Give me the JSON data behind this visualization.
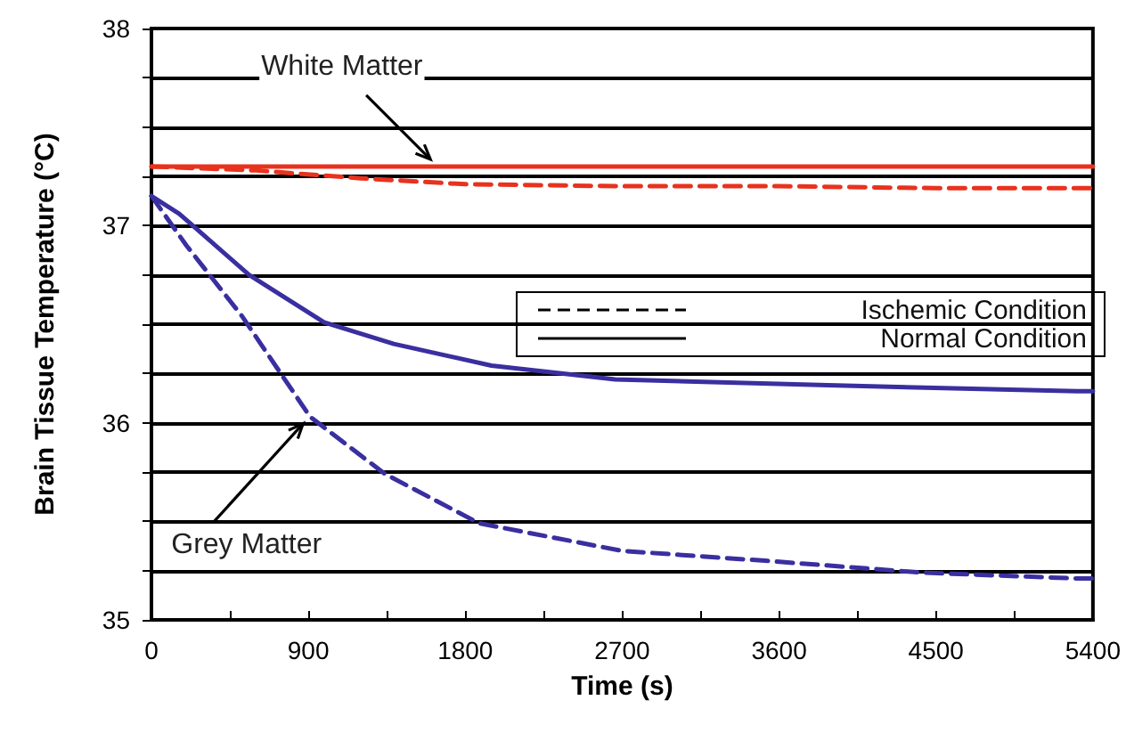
{
  "chart_data": {
    "type": "line",
    "xlabel": "Time (s)",
    "ylabel": "Brain Tissue Temperature (°C)",
    "xlim": [
      0,
      5400
    ],
    "xticks": [
      0,
      {
        "value": 450,
        "label": null
      },
      900,
      {
        "value": 1350,
        "label": null
      },
      1800,
      {
        "value": 2250,
        "label": null
      },
      2700,
      {
        "value": 3150,
        "label": null
      },
      3600,
      {
        "value": 4050,
        "label": null
      },
      4500,
      {
        "value": 4950,
        "label": null
      },
      5400
    ],
    "ylim": [
      35,
      38
    ],
    "yticks": [
      35,
      {
        "value": 35.25,
        "label": null
      },
      {
        "value": 35.5,
        "label": null
      },
      {
        "value": 35.75,
        "label": null
      },
      36,
      {
        "value": 36.25,
        "label": null
      },
      {
        "value": 36.5,
        "label": null
      },
      {
        "value": 36.75,
        "label": null
      },
      37,
      {
        "value": 37.25,
        "label": null
      },
      {
        "value": 37.5,
        "label": null
      },
      {
        "value": 37.75,
        "label": null
      },
      38
    ],
    "grid": "y",
    "marker": "none",
    "series": [
      {
        "color": "#e8321e",
        "line_style": "dashed",
        "x": [
          0,
          600,
          1200,
          1800,
          2700,
          3600,
          4500,
          5400
        ],
        "values": [
          37.3,
          37.28,
          37.24,
          37.21,
          37.2,
          37.2,
          37.19,
          37.19
        ]
      },
      {
        "color": "#e8321e",
        "line_style": "solid",
        "x": [
          0,
          1800,
          3600,
          5400
        ],
        "values": [
          37.3,
          37.3,
          37.3,
          37.3
        ]
      },
      {
        "color": "#3a2fa0",
        "line_style": "solid",
        "x": [
          0,
          160,
          560,
          990,
          1390,
          1950,
          2660,
          3880,
          5310,
          5400
        ],
        "values": [
          37.15,
          37.06,
          36.75,
          36.51,
          36.4,
          36.29,
          36.22,
          36.19,
          36.16,
          36.16
        ]
      },
      {
        "color": "#3a2fa0",
        "line_style": "dashed",
        "x": [
          0,
          200,
          520,
          910,
          1340,
          1880,
          2700,
          3520,
          4410,
          5310,
          5400
        ],
        "values": [
          37.15,
          36.9,
          36.54,
          36.03,
          35.74,
          35.49,
          35.35,
          35.3,
          35.24,
          35.21,
          35.21
        ]
      }
    ],
    "annotations": [
      {
        "text": "White Matter",
        "x": 1600,
        "y": 37.3
      },
      {
        "text": "Grey Matter",
        "x": 870,
        "y": 36.05
      },
      "Ischemic Condition",
      "Normal Condition"
    ]
  }
}
